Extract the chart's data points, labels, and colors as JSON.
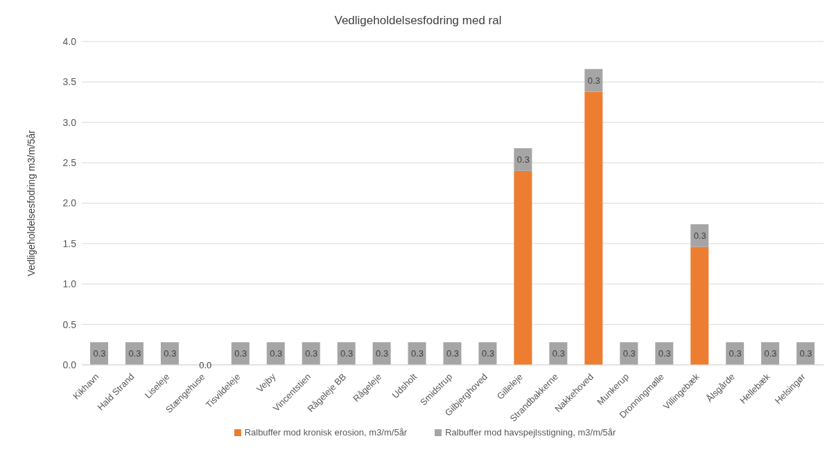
{
  "chart_data": {
    "type": "bar",
    "title": "Vedligeholdelsesfodring med ral",
    "ylabel": "Vedligeholdelsesfodring  m3/m/5år",
    "categories": [
      "Kikhavn",
      "Hald Strand",
      "Liseleje",
      "Stængehuse",
      "Tisvildeleje",
      "Vejby",
      "Vincentstien",
      "Rågeleje BB",
      "Rågeleje",
      "Udsholt",
      "Smidstrup",
      "Gilbjerghoved",
      "Gilleleje",
      "Strandbakkerne",
      "Nakkehoved",
      "Munkerup",
      "Dronningmølle",
      "Villingebæk",
      "Ålsgårde",
      "Hellebæk",
      "Helsingør"
    ],
    "stacked": true,
    "series": [
      {
        "name": "Ralbuffer mod kronisk erosion, m3/m/5år",
        "color": "#ed7d31",
        "values": [
          null,
          null,
          null,
          null,
          null,
          null,
          null,
          null,
          null,
          null,
          null,
          null,
          2.4,
          null,
          3.38,
          null,
          null,
          1.46,
          null,
          null,
          null
        ]
      },
      {
        "name": "Ralbuffer mod havspejlsstigning, m3/m/5år",
        "color": "#a5a5a5",
        "values": [
          0.28,
          0.28,
          0.28,
          0,
          0.28,
          0.28,
          0.28,
          0.28,
          0.28,
          0.28,
          0.28,
          0.28,
          0.28,
          0.28,
          0.28,
          0.28,
          0.28,
          0.28,
          0.28,
          0.28,
          0.28
        ],
        "value_labels": [
          "0.3",
          "0.3",
          "0.3",
          "0.0",
          "0.3",
          "0.3",
          "0.3",
          "0.3",
          "0.3",
          "0.3",
          "0.3",
          "0.3",
          "0.3",
          "0.3",
          "0.3",
          "0.3",
          "0.3",
          "0.3",
          "0.3",
          "0.3",
          "0.3"
        ]
      }
    ],
    "ylim": [
      0,
      4
    ],
    "yticks": [
      {
        "value": 0,
        "label": "0.0"
      },
      {
        "value": 0.5,
        "label": "0.5"
      },
      {
        "value": 1,
        "label": "1.0"
      },
      {
        "value": 1.5,
        "label": "1.5"
      },
      {
        "value": 2,
        "label": "2.0"
      },
      {
        "value": 2.5,
        "label": "2.5"
      },
      {
        "value": 3,
        "label": "3.0"
      },
      {
        "value": 3.5,
        "label": "3.5"
      },
      {
        "value": 4,
        "label": "4.0"
      }
    ],
    "grid": "y",
    "legend": "bottom"
  }
}
